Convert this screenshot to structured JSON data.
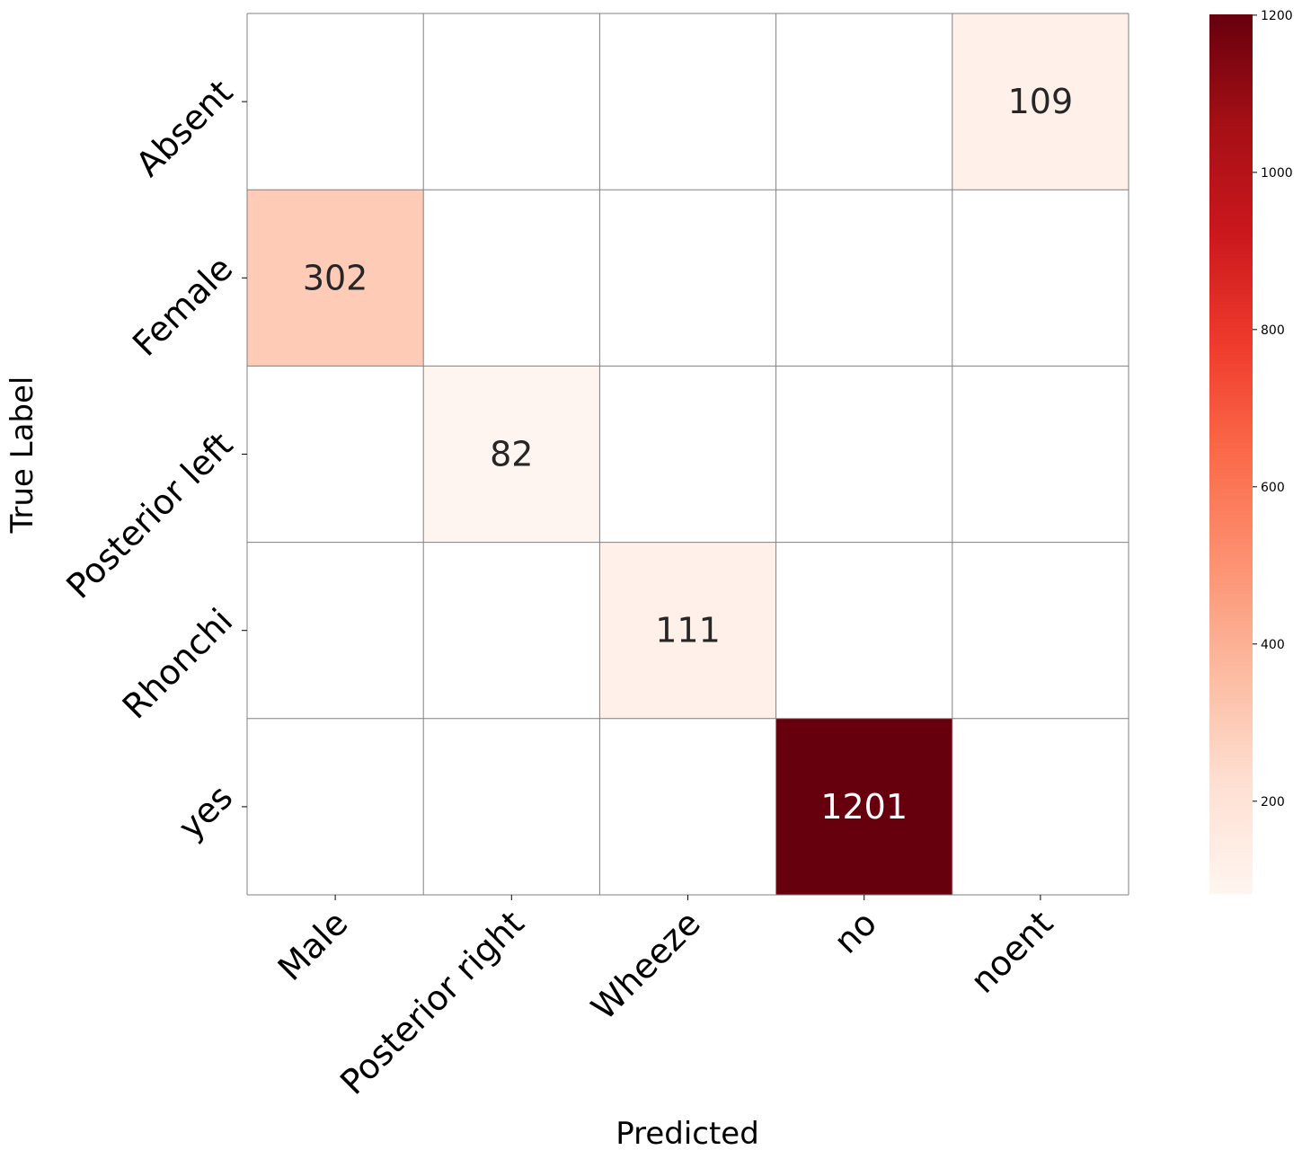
{
  "chart_data": {
    "type": "heatmap",
    "title": "",
    "xlabel": "Predicted",
    "ylabel": "True Label",
    "x_categories": [
      "Male",
      "Posterior right",
      "Wheeze",
      "no",
      "noent"
    ],
    "y_categories": [
      "Absent",
      "Female",
      "Posterior left",
      "Rhonchi",
      "yes"
    ],
    "values": [
      [
        null,
        null,
        null,
        null,
        109
      ],
      [
        302,
        null,
        null,
        null,
        null
      ],
      [
        null,
        82,
        null,
        null,
        null
      ],
      [
        null,
        null,
        111,
        null,
        null
      ],
      [
        null,
        null,
        null,
        1201,
        null
      ]
    ],
    "colormap": "Reds",
    "color_range": [
      82,
      1201
    ],
    "colorbar_ticks": [
      200,
      400,
      600,
      800,
      1000,
      1200
    ],
    "grid": true,
    "grid_color": "#808080",
    "empty_cell_color": "#ffffff"
  }
}
